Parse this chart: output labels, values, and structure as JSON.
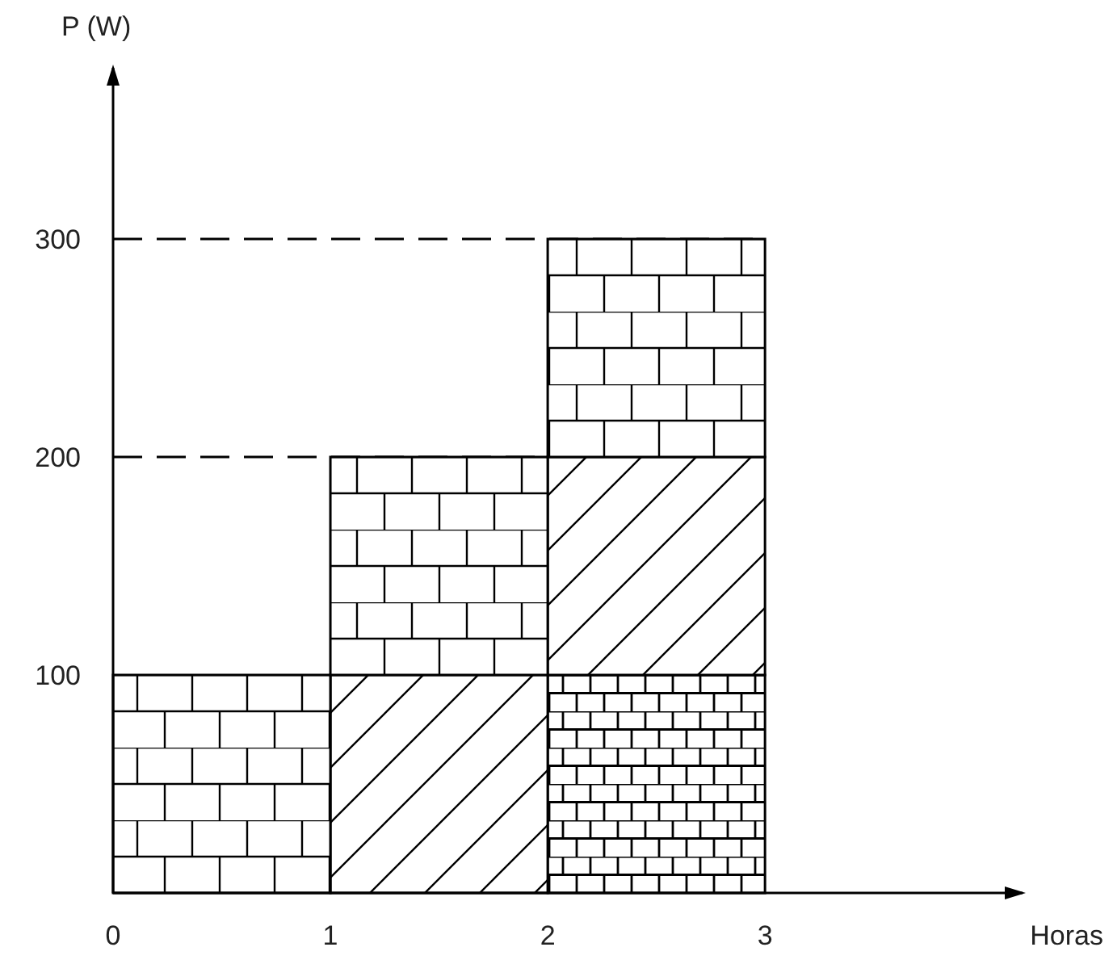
{
  "chart_data": {
    "type": "bar",
    "stacked": true,
    "xlabel": "Horas",
    "ylabel": "P (W)",
    "x": [
      0.5,
      1.5,
      2.5
    ],
    "xlim": [
      0,
      4.2
    ],
    "xticks": [
      0,
      1,
      2,
      3
    ],
    "ylim": [
      0,
      380
    ],
    "yticks": [
      100,
      200,
      300
    ],
    "grid": false,
    "series": [
      {
        "color": "#000000",
        "values": [
          null,
          null,
          100
        ]
      },
      {
        "color": "#000000",
        "values": [
          null,
          100,
          100
        ]
      },
      {
        "color": "#000000",
        "values": [
          100,
          100,
          100
        ]
      }
    ],
    "ref_lines": [
      {
        "axis": "y",
        "value": 200,
        "line_style": "dashed"
      },
      {
        "axis": "y",
        "value": 300,
        "line_style": "dashed"
      }
    ]
  }
}
